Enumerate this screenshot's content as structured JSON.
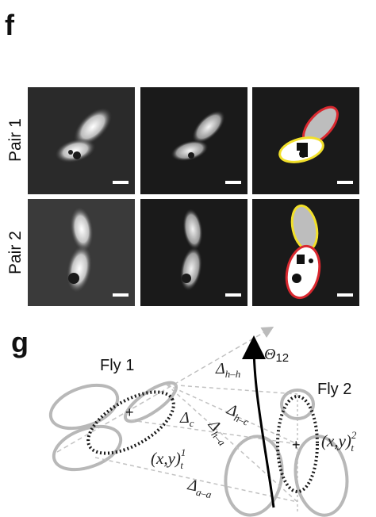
{
  "figure": {
    "panel_f": {
      "letter": "f",
      "rows": [
        {
          "label": "Pair 1"
        },
        {
          "label": "Pair 2"
        }
      ],
      "columns": [
        "raw-frame",
        "processed-frame",
        "fitted-ellipses"
      ],
      "colors": {
        "fly_yellow": "#f2e02a",
        "fly_red": "#d9282f",
        "body_fill": "#bdbdbd",
        "scale_bar": "#ffffff"
      }
    },
    "panel_g": {
      "letter": "g",
      "fly1_label": "Fly 1",
      "fly2_label": "Fly 2",
      "theta_label": "Θ",
      "theta_sub": "12",
      "delta_hh": "Δ",
      "delta_hh_sub": "h–h",
      "delta_hc": "Δ",
      "delta_hc_sub": "h–c",
      "delta_c": "Δ",
      "delta_c_sub": "c",
      "delta_ha": "Δ",
      "delta_ha_sub": "h–a",
      "delta_aa": "Δ",
      "delta_aa_sub": "a–a",
      "pos1_main": "(x,y)",
      "pos1_sup": "1",
      "pos1_sub": "t",
      "pos2_main": "(x,y)",
      "pos2_sup": "2",
      "pos2_sub": "t",
      "center_mark": "+",
      "colors": {
        "outline_gray": "#b8b8b8",
        "dashed_gray": "#b5b5b5",
        "dotted_black": "#1a1a1a",
        "arrow": "#000000"
      }
    }
  }
}
